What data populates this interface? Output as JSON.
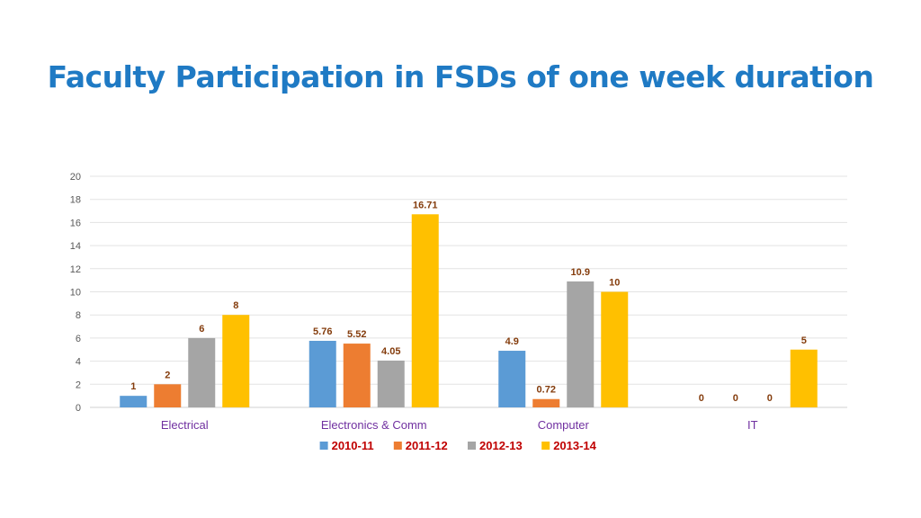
{
  "title": "Faculty Participation in FSDs of one week duration",
  "chart_data": {
    "type": "bar",
    "title": "Faculty Participation in FSDs of one week duration",
    "categories": [
      "Electrical",
      "Electronics & Comm",
      "Computer",
      "IT"
    ],
    "series": [
      {
        "name": "2010-11",
        "color": "#5b9bd5",
        "values": [
          1,
          5.76,
          4.9,
          0
        ]
      },
      {
        "name": "2011-12",
        "color": "#ed7d31",
        "values": [
          2,
          5.52,
          0.72,
          0
        ]
      },
      {
        "name": "2012-13",
        "color": "#a5a5a5",
        "values": [
          6,
          4.05,
          10.9,
          0
        ]
      },
      {
        "name": "2013-14",
        "color": "#ffc000",
        "values": [
          8,
          16.71,
          10,
          5
        ]
      }
    ],
    "ylim": [
      0,
      20
    ],
    "yticks": [
      0,
      2,
      4,
      6,
      8,
      10,
      12,
      14,
      16,
      18,
      20
    ],
    "grid": true,
    "legend": "bottom",
    "xlabel": "",
    "ylabel": ""
  }
}
